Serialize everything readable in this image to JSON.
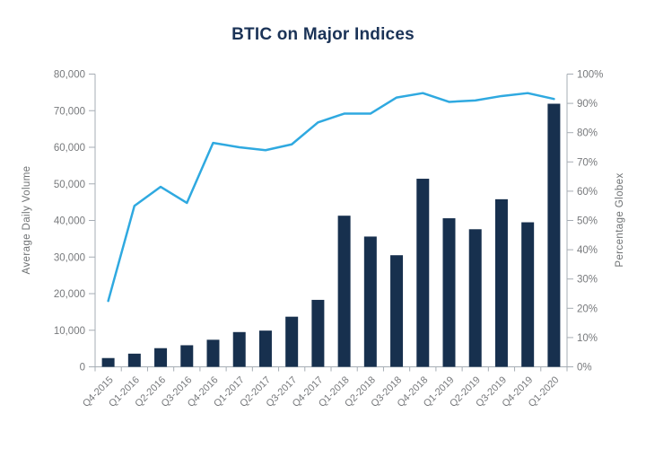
{
  "title": "BTIC on Major Indices",
  "chart_data": {
    "type": "bar+line combo",
    "title": "BTIC on Major Indices",
    "categories": [
      "Q4-2015",
      "Q1-2016",
      "Q2-2016",
      "Q3-2016",
      "Q4-2016",
      "Q1-2017",
      "Q2-2017",
      "Q3-2017",
      "Q4-2017",
      "Q1-2018",
      "Q2-2018",
      "Q3-2018",
      "Q4-2018",
      "Q1-2019",
      "Q2-2019",
      "Q3-2019",
      "Q4-2019",
      "Q1-2020"
    ],
    "series": [
      {
        "name": "Average Daily Volume",
        "type": "bar",
        "axis": "left",
        "color": "#17304e",
        "values": [
          2400,
          3600,
          5100,
          5900,
          7400,
          9500,
          9900,
          13700,
          18300,
          41300,
          35600,
          30500,
          51400,
          40600,
          37600,
          45800,
          39500,
          71900
        ]
      },
      {
        "name": "Percentage Globex",
        "type": "line",
        "axis": "right",
        "color": "#2fa9e0",
        "values": [
          22.5,
          55,
          61.5,
          56,
          76.5,
          75,
          74,
          76,
          83.5,
          86.5,
          86.5,
          92,
          93.5,
          90.5,
          91,
          92.5,
          93.5,
          91.5
        ]
      }
    ],
    "left_axis": {
      "label": "Average Daily Volume",
      "min": 0,
      "max": 80000,
      "step": 10000,
      "tick_labels": [
        "0",
        "10,000",
        "20,000",
        "30,000",
        "40,000",
        "50,000",
        "60,000",
        "70,000",
        "80,000"
      ]
    },
    "right_axis": {
      "label": "Percentage Globex",
      "min": 0,
      "max": 100,
      "step": 10,
      "tick_labels": [
        "0%",
        "10%",
        "20%",
        "30%",
        "40%",
        "50%",
        "60%",
        "70%",
        "80%",
        "90%",
        "100%"
      ]
    },
    "legend": "none",
    "grid": false
  },
  "colors": {
    "title": "#1b3357",
    "bar": "#17304e",
    "line": "#2fa9e0",
    "axis": "#a6adb4",
    "tick_text": "#77797c"
  }
}
